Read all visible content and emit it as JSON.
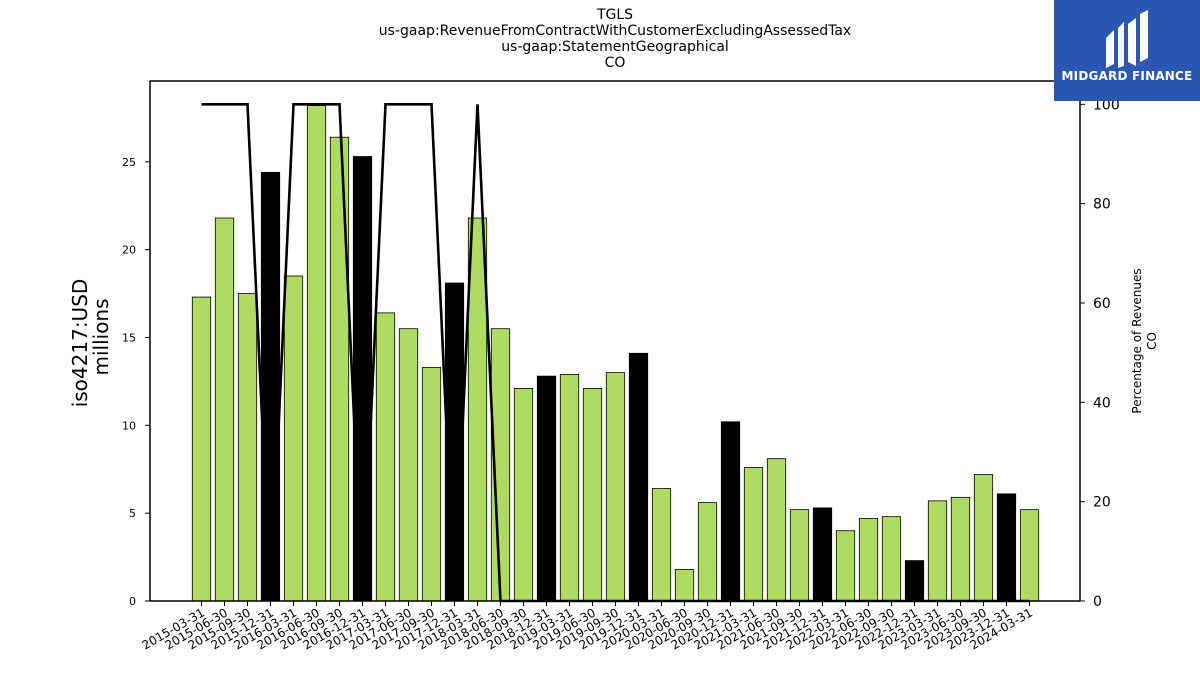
{
  "titles": [
    "TGLS",
    "us-gaap:RevenueFromContractWithCustomerExcludingAssessedTax",
    "us-gaap:StatementGeographical",
    "CO"
  ],
  "logo": {
    "text": "MIDGARD FINANCE",
    "background": "#2c57b0"
  },
  "colors": {
    "bar_green": "#b0db63",
    "bar_black": "#000000",
    "line": "#000000",
    "bar_edge": "#000000"
  },
  "chart_data": {
    "type": "bar",
    "y_left_label_line1": "iso4217:USD",
    "y_left_label_line2": "millions",
    "y_right_label_line1": "Percentage of Revenues",
    "y_right_label_line2": "CO",
    "ylim_left": [
      0,
      29.6
    ],
    "ylim_right": [
      0,
      104.7
    ],
    "yticks_left": [
      0,
      5,
      10,
      15,
      20,
      25
    ],
    "yticks_right": [
      0,
      20,
      40,
      60,
      80,
      100
    ],
    "categories": [
      "2015-03-31",
      "2015-06-30",
      "2015-09-30",
      "2015-12-31",
      "2016-03-31",
      "2016-06-30",
      "2016-09-30",
      "2016-12-31",
      "2017-03-31",
      "2017-06-30",
      "2017-09-30",
      "2017-12-31",
      "2018-03-31",
      "2018-06-30",
      "2018-09-30",
      "2018-12-31",
      "2019-03-31",
      "2019-06-30",
      "2019-09-30",
      "2019-12-31",
      "2020-03-31",
      "2020-06-30",
      "2020-09-30",
      "2020-12-31",
      "2021-03-31",
      "2021-06-30",
      "2021-09-30",
      "2021-12-31",
      "2022-03-31",
      "2022-06-30",
      "2022-09-30",
      "2022-12-31",
      "2023-03-31",
      "2023-06-30",
      "2023-09-30",
      "2023-12-31",
      "2024-03-31"
    ],
    "bar_values": [
      17.3,
      21.8,
      17.5,
      24.4,
      18.5,
      28.2,
      26.4,
      25.3,
      16.4,
      15.5,
      13.3,
      18.1,
      21.8,
      15.5,
      12.1,
      12.8,
      12.9,
      12.1,
      13.0,
      14.1,
      6.4,
      1.8,
      5.6,
      10.2,
      7.6,
      8.1,
      5.2,
      5.3,
      4.0,
      4.7,
      4.8,
      2.3,
      5.7,
      5.9,
      7.2,
      6.1,
      5.2
    ],
    "bar_is_year_end": [
      false,
      false,
      false,
      true,
      false,
      false,
      false,
      true,
      false,
      false,
      false,
      true,
      false,
      false,
      false,
      true,
      false,
      false,
      false,
      true,
      false,
      false,
      false,
      true,
      false,
      false,
      false,
      true,
      false,
      false,
      false,
      true,
      false,
      false,
      false,
      true,
      false
    ],
    "line_values": [
      100,
      100,
      100,
      0,
      100,
      100,
      100,
      0,
      100,
      100,
      100,
      0,
      100,
      0,
      0,
      0,
      0,
      0,
      0,
      0,
      0,
      0,
      0,
      0,
      0,
      0,
      0,
      0,
      0,
      0,
      0,
      0,
      0,
      0,
      0,
      0,
      0
    ]
  }
}
